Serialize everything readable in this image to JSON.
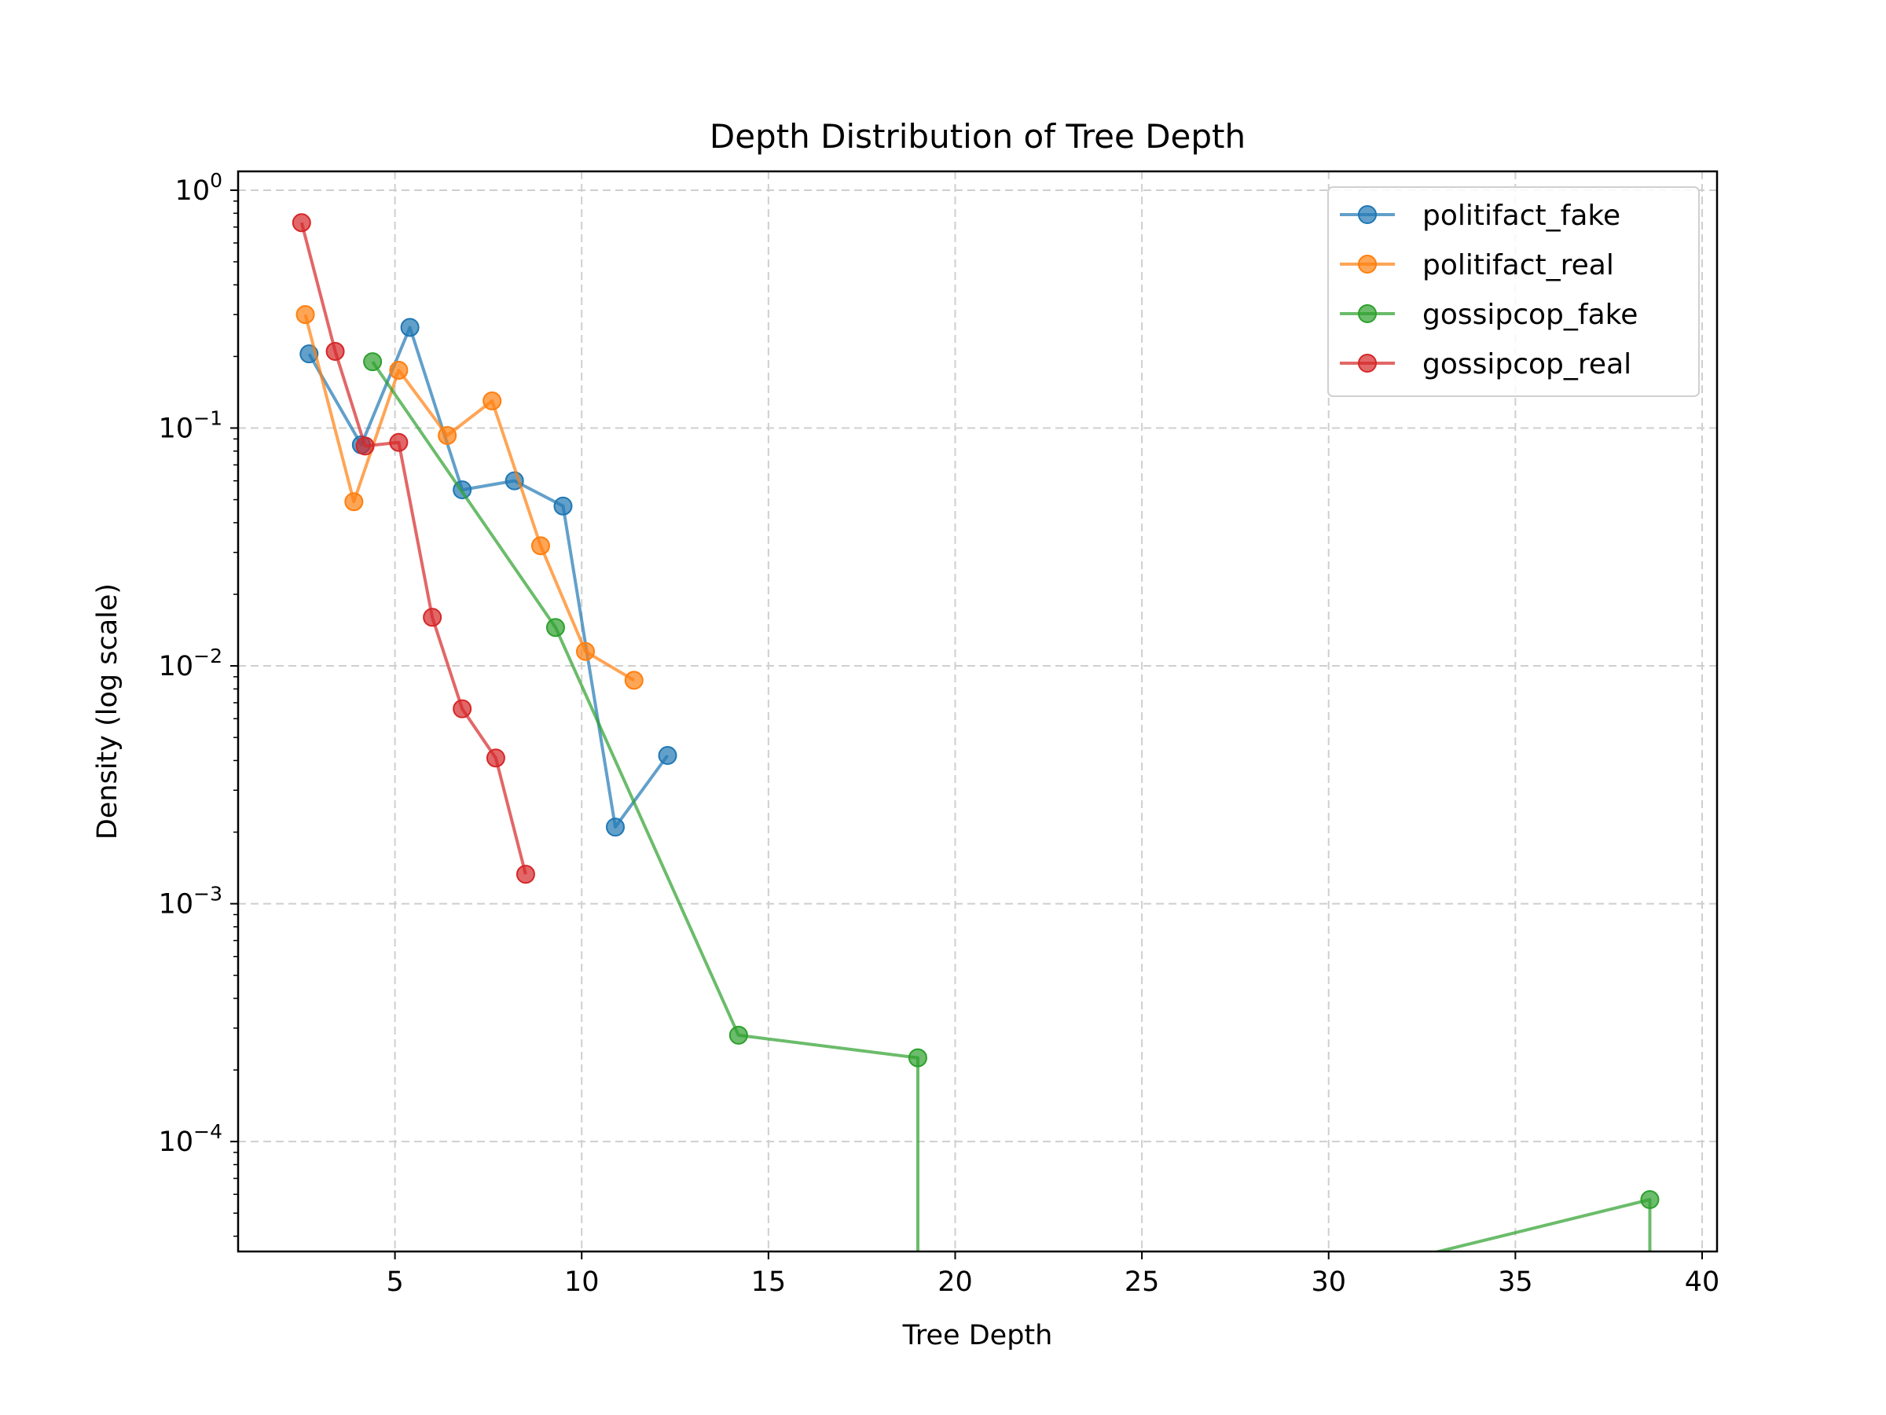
{
  "chart_data": {
    "type": "line",
    "title": "Depth Distribution of Tree Depth",
    "xlabel": "Tree Depth",
    "ylabel": "Density (log scale)",
    "xlim": [
      0.8,
      40.4
    ],
    "ylim": [
      3.45e-05,
      1.2
    ],
    "yscale": "log",
    "x_ticks": [
      5,
      10,
      15,
      20,
      25,
      30,
      35,
      40
    ],
    "y_ticks": [
      {
        "value": 1,
        "base": "10",
        "exp": "0"
      },
      {
        "value": 0.1,
        "base": "10",
        "exp": "−1"
      },
      {
        "value": 0.01,
        "base": "10",
        "exp": "−2"
      },
      {
        "value": 0.001,
        "base": "10",
        "exp": "−3"
      },
      {
        "value": 0.0001,
        "base": "10",
        "exp": "−4"
      }
    ],
    "grid": true,
    "legend_position": "top-right",
    "series": [
      {
        "name": "politifact_fake",
        "color": "#1f77b4",
        "points": [
          [
            2.7,
            0.205
          ],
          [
            4.1,
            0.085
          ],
          [
            5.4,
            0.265
          ],
          [
            6.8,
            0.055
          ],
          [
            8.2,
            0.06
          ],
          [
            9.5,
            0.047
          ],
          [
            10.9,
            0.0021
          ],
          [
            12.3,
            0.0042
          ]
        ]
      },
      {
        "name": "politifact_real",
        "color": "#ff7f0e",
        "points": [
          [
            2.6,
            0.3
          ],
          [
            3.9,
            0.049
          ],
          [
            5.1,
            0.175
          ],
          [
            6.4,
            0.093
          ],
          [
            7.6,
            0.13
          ],
          [
            8.9,
            0.032
          ],
          [
            10.1,
            0.0115
          ],
          [
            11.4,
            0.0087
          ]
        ]
      },
      {
        "name": "gossipcop_fake",
        "color": "#2ca02c",
        "points": [
          [
            4.4,
            0.19
          ],
          [
            9.3,
            0.0145
          ],
          [
            14.2,
            0.00028
          ],
          [
            19.0,
            0.000225
          ],
          [
            19.0,
            1e-05
          ],
          [
            38.6,
            5.7e-05
          ],
          [
            38.6,
            1e-05
          ]
        ]
      },
      {
        "name": "gossipcop_real",
        "color": "#d62728",
        "points": [
          [
            2.5,
            0.73
          ],
          [
            3.4,
            0.21
          ],
          [
            4.2,
            0.084
          ],
          [
            5.1,
            0.087
          ],
          [
            6.0,
            0.016
          ],
          [
            6.8,
            0.0066
          ],
          [
            7.7,
            0.0041
          ],
          [
            8.5,
            0.00133
          ]
        ]
      }
    ]
  }
}
